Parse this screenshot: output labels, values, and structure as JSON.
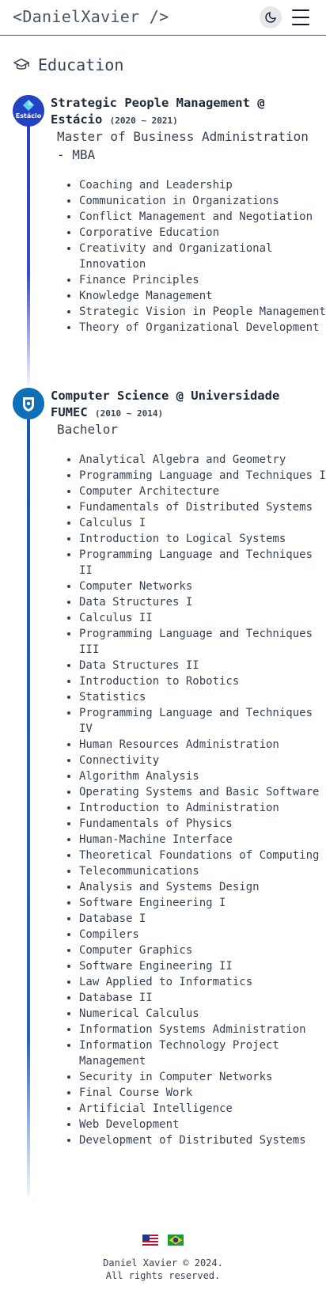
{
  "header": {
    "brand": "<DanielXavier />",
    "theme_toggle_icon": "moon-icon",
    "menu_icon": "hamburger-menu-icon"
  },
  "section": {
    "icon": "graduation-cap-icon",
    "title": "Education"
  },
  "education": [
    {
      "title": "Strategic People Management @ Estácio",
      "dates": "(2020 ~ 2021)",
      "degree": "Master of Business Administration - MBA",
      "logo_text": "Estácio",
      "accent_color": "#2f3fb5",
      "courses": [
        "Coaching and Leadership",
        "Communication in Organizations",
        "Conflict Management and Negotiation",
        "Corporative Education",
        "Creativity and Organizational Innovation",
        "Finance Principles",
        "Knowledge Management",
        "Strategic Vision in People Management",
        "Theory of Organizational Development"
      ]
    },
    {
      "title": "Computer Science @ Universidade FUMEC",
      "dates": "(2010 ~ 2014)",
      "degree": "Bachelor",
      "accent_color": "#1e5aa8",
      "courses": [
        "Analytical Algebra and Geometry",
        "Programming Language and Techniques I",
        "Computer Architecture",
        "Fundamentals of Distributed Systems",
        "Calculus I",
        "Introduction to Logical Systems",
        "Programming Language and Techniques II",
        "Computer Networks",
        "Data Structures I",
        "Calculus II",
        "Programming Language and Techniques III",
        "Data Structures II",
        "Introduction to Robotics",
        "Statistics",
        "Programming Language and Techniques IV",
        "Human Resources Administration",
        "Connectivity",
        "Algorithm Analysis",
        "Operating Systems and Basic Software",
        "Introduction to Administration",
        "Fundamentals of Physics",
        "Human-Machine Interface",
        "Theoretical Foundations of Computing",
        "Telecommunications",
        "Analysis and Systems Design",
        "Software Engineering I",
        "Database I",
        "Compilers",
        "Computer Graphics",
        "Software Engineering II",
        "Law Applied to Informatics",
        "Database II",
        "Numerical Calculus",
        "Information Systems Administration",
        "Information Technology Project Management",
        "Security in Computer Networks",
        "Final Course Work",
        "Artificial Intelligence",
        "Web Development",
        "Development of Distributed Systems"
      ]
    }
  ],
  "footer": {
    "flags": [
      "us-flag-icon",
      "brazil-flag-icon"
    ],
    "copyright": "Daniel Xavier © 2024.",
    "rights": "All rights reserved."
  }
}
